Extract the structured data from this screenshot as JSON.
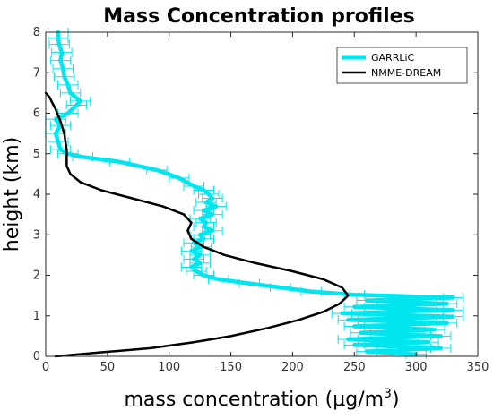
{
  "chart_data": {
    "type": "line",
    "title": "Mass Concentration profiles",
    "xlabel": "mass concentration  (μg/m",
    "xlabel_sup": "3",
    "xlabel_end": ")",
    "ylabel": "height  (km)",
    "xlim": [
      0,
      350
    ],
    "ylim": [
      0,
      8
    ],
    "xticks": [
      "0",
      "50",
      "100",
      "150",
      "200",
      "250",
      "300",
      "350"
    ],
    "yticks": [
      "0",
      "1",
      "2",
      "3",
      "4",
      "5",
      "6",
      "7",
      "8"
    ],
    "grid": false,
    "legend_position": "top-right",
    "series": [
      {
        "name": "GARRLiC",
        "color": "#00e5ee",
        "error_bars": true,
        "points": [
          [
            300,
            0.05
          ],
          [
            260,
            0.12
          ],
          [
            320,
            0.2
          ],
          [
            250,
            0.28
          ],
          [
            310,
            0.35
          ],
          [
            245,
            0.42
          ],
          [
            320,
            0.5
          ],
          [
            255,
            0.58
          ],
          [
            315,
            0.66
          ],
          [
            250,
            0.74
          ],
          [
            325,
            0.82
          ],
          [
            245,
            0.9
          ],
          [
            330,
            0.98
          ],
          [
            240,
            1.06
          ],
          [
            330,
            1.14
          ],
          [
            250,
            1.22
          ],
          [
            325,
            1.3
          ],
          [
            260,
            1.38
          ],
          [
            330,
            1.45
          ],
          [
            250,
            1.52
          ],
          [
            215,
            1.6
          ],
          [
            190,
            1.7
          ],
          [
            165,
            1.8
          ],
          [
            140,
            1.9
          ],
          [
            128,
            2.0
          ],
          [
            122,
            2.1
          ],
          [
            118,
            2.2
          ],
          [
            125,
            2.3
          ],
          [
            120,
            2.4
          ],
          [
            125,
            2.5
          ],
          [
            118,
            2.6
          ],
          [
            126,
            2.7
          ],
          [
            120,
            2.8
          ],
          [
            128,
            2.9
          ],
          [
            125,
            3.0
          ],
          [
            135,
            3.1
          ],
          [
            128,
            3.2
          ],
          [
            130,
            3.3
          ],
          [
            125,
            3.4
          ],
          [
            135,
            3.5
          ],
          [
            128,
            3.6
          ],
          [
            138,
            3.7
          ],
          [
            130,
            3.8
          ],
          [
            135,
            3.9
          ],
          [
            132,
            4.0
          ],
          [
            128,
            4.1
          ],
          [
            120,
            4.2
          ],
          [
            108,
            4.4
          ],
          [
            90,
            4.6
          ],
          [
            60,
            4.8
          ],
          [
            30,
            4.92
          ],
          [
            18,
            5.0
          ],
          [
            12,
            5.1
          ],
          [
            10,
            5.3
          ],
          [
            8,
            5.5
          ],
          [
            12,
            5.7
          ],
          [
            8,
            5.85
          ],
          [
            18,
            6.0
          ],
          [
            25,
            6.2
          ],
          [
            28,
            6.3
          ],
          [
            20,
            6.5
          ],
          [
            18,
            6.7
          ],
          [
            15,
            6.9
          ],
          [
            14,
            7.1
          ],
          [
            12,
            7.3
          ],
          [
            13,
            7.5
          ],
          [
            11,
            7.7
          ],
          [
            10,
            7.85
          ],
          [
            10,
            8.0
          ]
        ]
      },
      {
        "name": "NMME-DREAM",
        "color": "#000000",
        "error_bars": false,
        "points": [
          [
            8,
            0.0
          ],
          [
            45,
            0.1
          ],
          [
            85,
            0.2
          ],
          [
            120,
            0.35
          ],
          [
            150,
            0.5
          ],
          [
            180,
            0.7
          ],
          [
            205,
            0.9
          ],
          [
            225,
            1.1
          ],
          [
            238,
            1.3
          ],
          [
            245,
            1.5
          ],
          [
            240,
            1.7
          ],
          [
            225,
            1.9
          ],
          [
            200,
            2.1
          ],
          [
            170,
            2.3
          ],
          [
            145,
            2.5
          ],
          [
            128,
            2.7
          ],
          [
            118,
            2.9
          ],
          [
            115,
            3.1
          ],
          [
            118,
            3.3
          ],
          [
            112,
            3.5
          ],
          [
            95,
            3.7
          ],
          [
            70,
            3.9
          ],
          [
            45,
            4.1
          ],
          [
            28,
            4.3
          ],
          [
            20,
            4.5
          ],
          [
            17,
            4.7
          ],
          [
            17,
            4.9
          ],
          [
            17,
            5.1
          ],
          [
            16,
            5.3
          ],
          [
            15,
            5.5
          ],
          [
            12,
            5.8
          ],
          [
            8,
            6.1
          ],
          [
            3,
            6.4
          ],
          [
            0,
            6.5
          ]
        ]
      }
    ]
  }
}
